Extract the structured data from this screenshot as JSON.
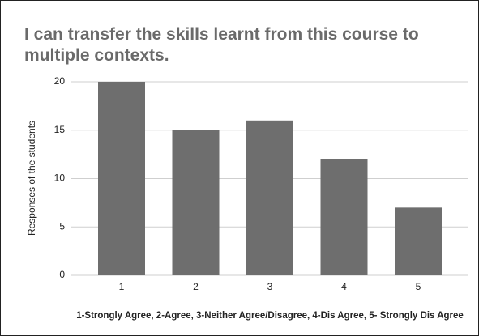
{
  "chart_data": {
    "type": "bar",
    "title": "I can transfer the skills learnt from this course to multiple contexts.",
    "y_label": "Responses of the students",
    "x_label": "1-Strongly Agree, 2-Agree, 3-Neither Agree/Disagree, 4-Dis Agree, 5- Strongly Dis Agree",
    "categories": [
      "1",
      "2",
      "3",
      "4",
      "5"
    ],
    "values": [
      20,
      15,
      16,
      12,
      7
    ],
    "color": "#6e6e6e",
    "ylim": [
      0,
      20
    ],
    "yticks": [
      0,
      5,
      10,
      15,
      20
    ],
    "grid": true
  }
}
